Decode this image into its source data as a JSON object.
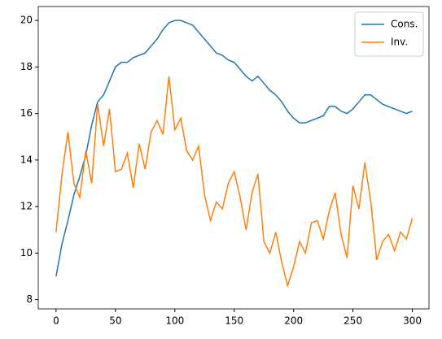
{
  "chart_data": {
    "type": "line",
    "x": [
      0,
      5,
      10,
      15,
      20,
      25,
      30,
      35,
      40,
      45,
      50,
      55,
      60,
      65,
      70,
      75,
      80,
      85,
      90,
      95,
      100,
      105,
      110,
      115,
      120,
      125,
      130,
      135,
      140,
      145,
      150,
      155,
      160,
      165,
      170,
      175,
      180,
      185,
      190,
      195,
      200,
      205,
      210,
      215,
      220,
      225,
      230,
      235,
      240,
      245,
      250,
      255,
      260,
      265,
      270,
      275,
      280,
      285,
      290,
      295,
      300
    ],
    "series": [
      {
        "name": "Cons.",
        "color": "#1f77b4",
        "values": [
          9.0,
          10.4,
          11.4,
          12.5,
          13.3,
          14.2,
          15.5,
          16.5,
          16.8,
          17.4,
          18.0,
          18.2,
          18.2,
          18.4,
          18.5,
          18.6,
          18.9,
          19.2,
          19.6,
          19.9,
          20.0,
          20.0,
          19.9,
          19.8,
          19.5,
          19.2,
          18.9,
          18.6,
          18.5,
          18.3,
          18.2,
          17.9,
          17.6,
          17.4,
          17.6,
          17.3,
          17.0,
          16.8,
          16.5,
          16.1,
          15.8,
          15.6,
          15.6,
          15.7,
          15.8,
          15.9,
          16.3,
          16.3,
          16.1,
          16.0,
          16.2,
          16.5,
          16.8,
          16.8,
          16.6,
          16.4,
          16.3,
          16.2,
          16.1,
          16.0,
          16.1
        ]
      },
      {
        "name": "Inv.",
        "color": "#ff7f0e",
        "values": [
          10.9,
          13.4,
          15.2,
          13.0,
          12.4,
          14.4,
          13.0,
          16.4,
          14.6,
          16.2,
          13.5,
          13.6,
          14.3,
          12.8,
          14.7,
          13.6,
          15.2,
          15.7,
          15.1,
          17.6,
          15.3,
          15.8,
          14.4,
          14.0,
          14.6,
          12.5,
          11.4,
          12.2,
          11.9,
          13.0,
          13.5,
          12.4,
          11.0,
          12.6,
          13.4,
          10.5,
          10.0,
          10.9,
          9.6,
          8.6,
          9.4,
          10.5,
          10.0,
          11.3,
          11.4,
          10.6,
          11.8,
          12.6,
          10.8,
          9.8,
          12.9,
          11.9,
          13.9,
          12.2,
          9.7,
          10.5,
          10.8,
          10.1,
          10.9,
          10.6,
          11.5
        ]
      }
    ],
    "xlim": [
      -15,
      314
    ],
    "ylim": [
      7.6,
      20.6
    ],
    "xticks": [
      0,
      50,
      100,
      150,
      200,
      250,
      300
    ],
    "yticks": [
      8,
      10,
      12,
      14,
      16,
      18,
      20
    ],
    "grid": false,
    "legend": "upper-right"
  }
}
